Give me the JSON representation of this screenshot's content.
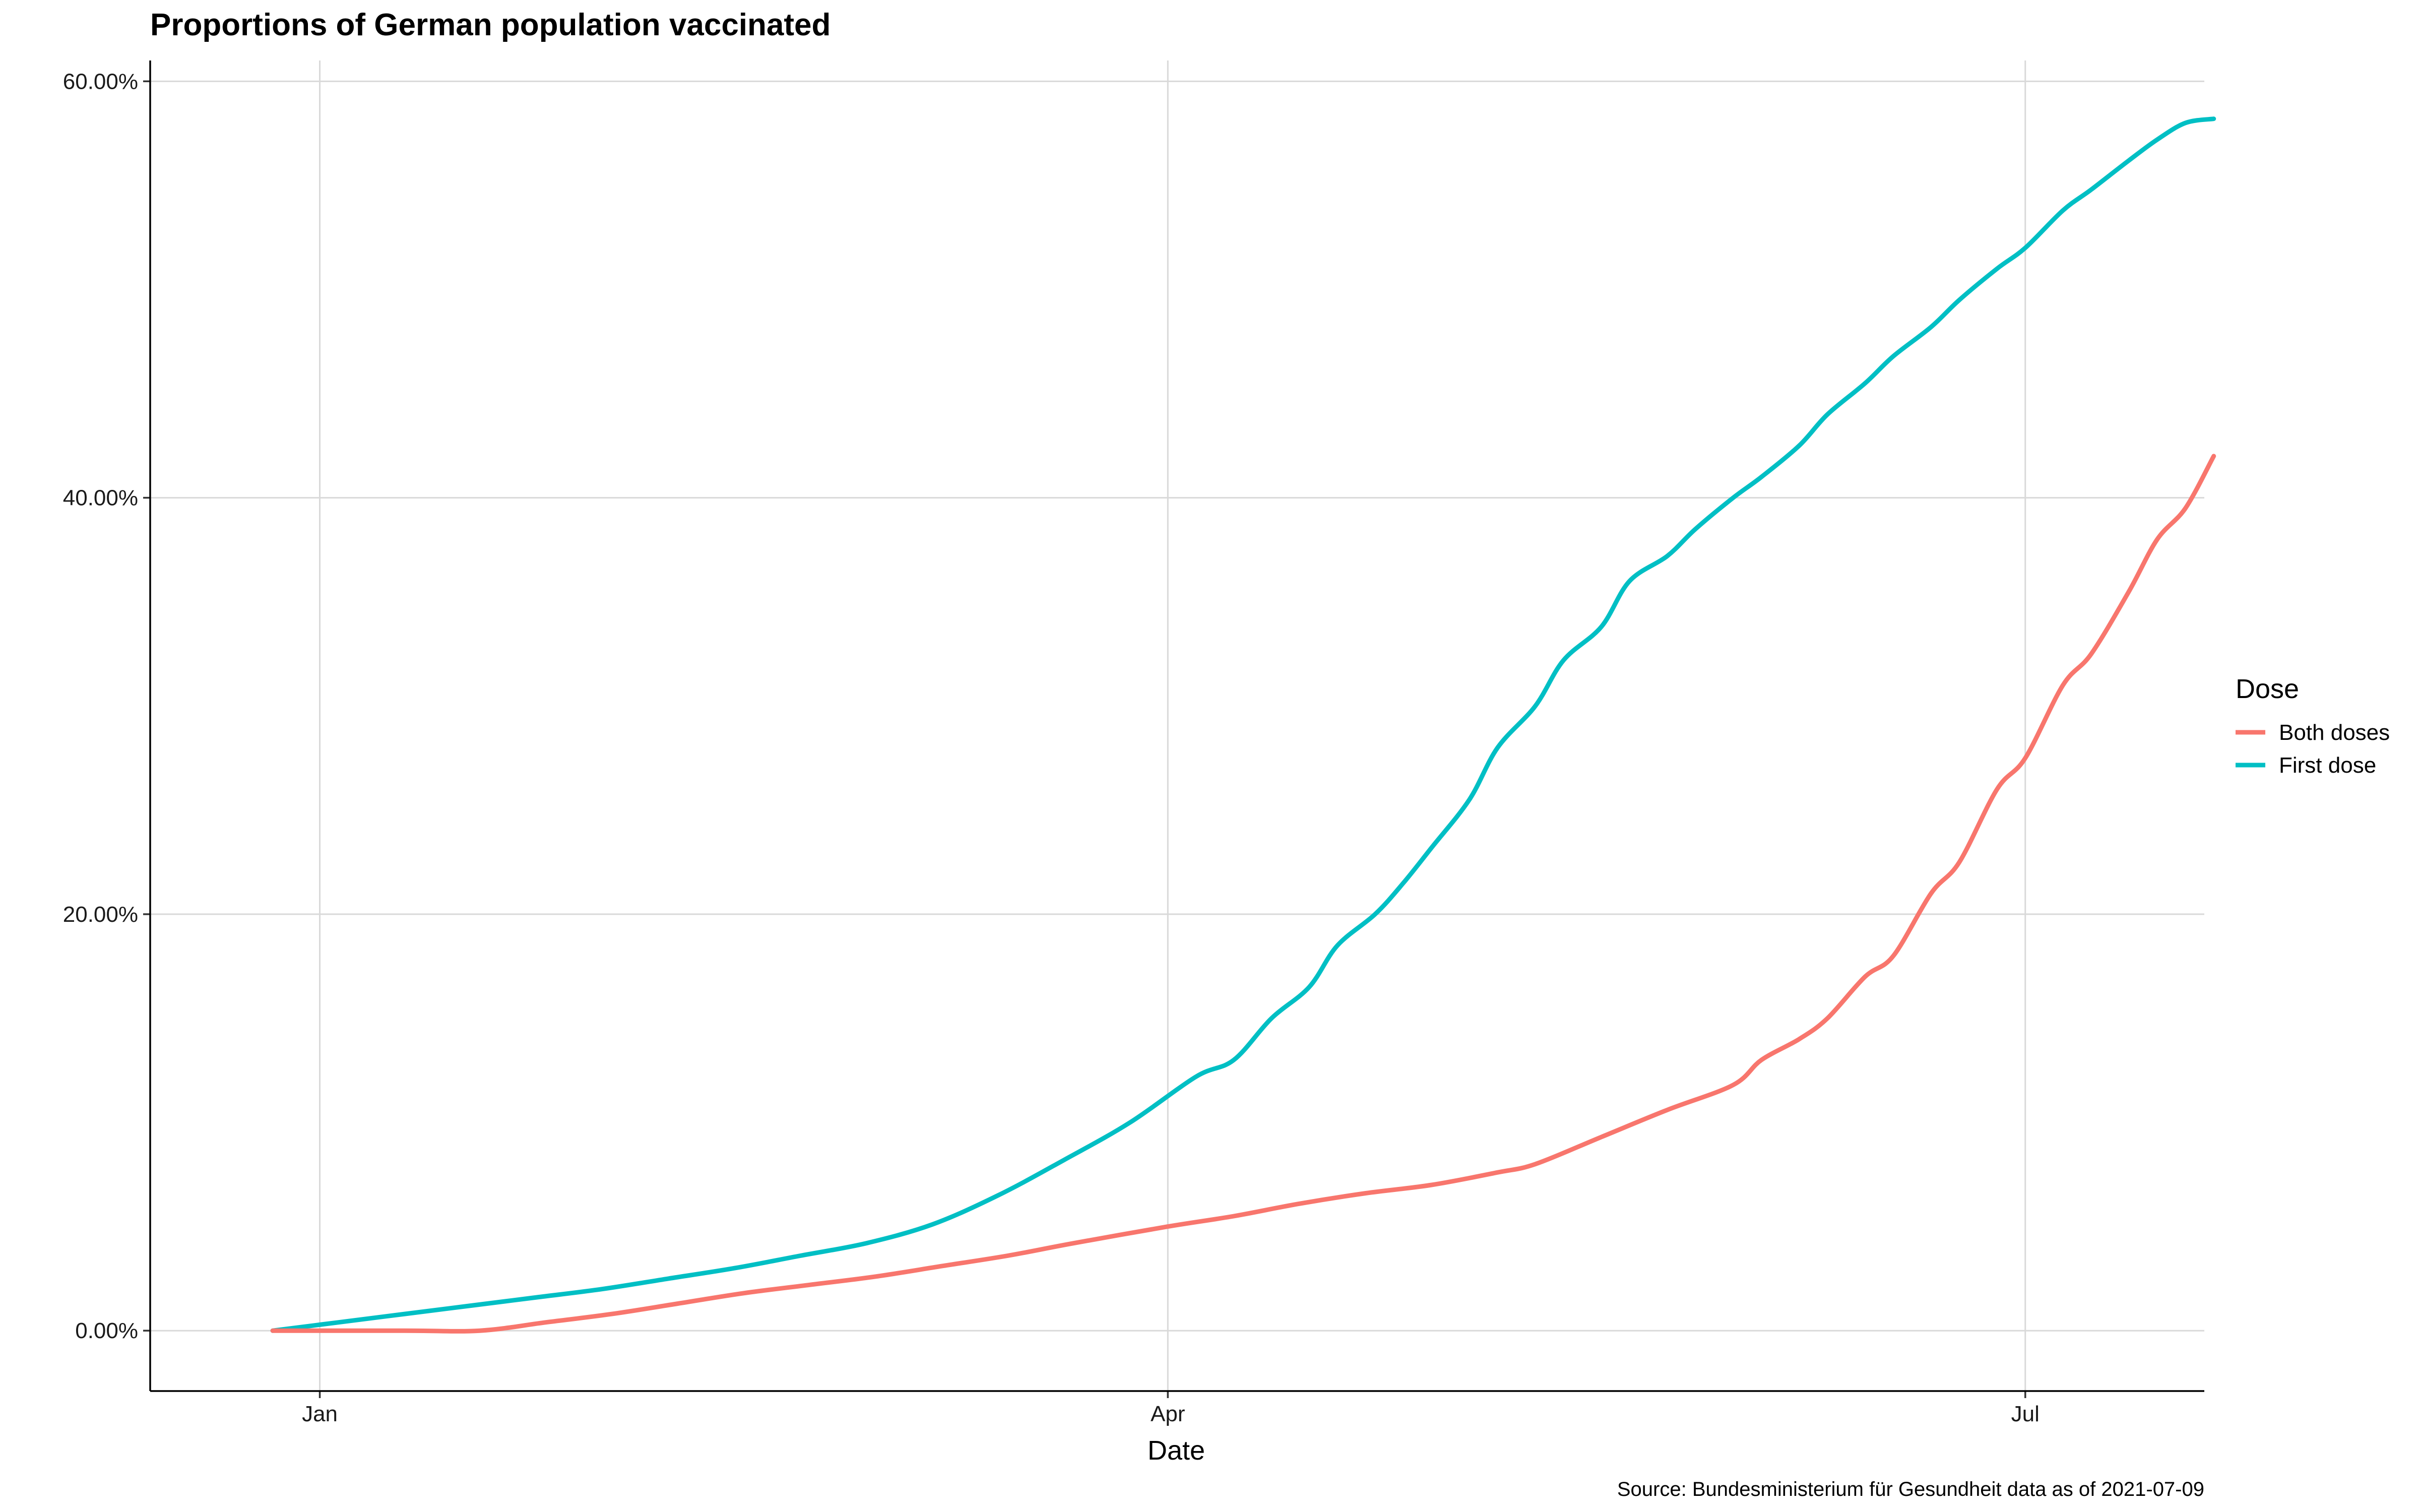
{
  "chart_data": {
    "type": "line",
    "title": "Proportions of German population vaccinated",
    "xlabel": "Date",
    "ylabel": "",
    "caption": "Source: Bundesministerium für Gesundheit data as of 2021-07-09",
    "x_axis": {
      "type": "date",
      "range": [
        "2020-12-14",
        "2021-07-20"
      ],
      "ticks": [
        {
          "date": "2021-01-01",
          "label": "Jan"
        },
        {
          "date": "2021-04-01",
          "label": "Apr"
        },
        {
          "date": "2021-07-01",
          "label": "Jul"
        }
      ]
    },
    "y_axis": {
      "range": [
        -0.029,
        0.61
      ],
      "ticks": [
        {
          "value": 0,
          "label": "0.00%"
        },
        {
          "value": 0.2,
          "label": "20.00%"
        },
        {
          "value": 0.4,
          "label": "40.00%"
        },
        {
          "value": 0.6,
          "label": "60.00%"
        }
      ]
    },
    "grid": true,
    "legend": {
      "title": "Dose",
      "position": "right"
    },
    "series": [
      {
        "name": "Both doses",
        "color": "#F8766D",
        "points": [
          [
            "2020-12-27",
            0.0
          ],
          [
            "2021-01-10",
            0.0
          ],
          [
            "2021-01-18",
            0.0
          ],
          [
            "2021-01-25",
            0.004
          ],
          [
            "2021-02-01",
            0.008
          ],
          [
            "2021-02-08",
            0.013
          ],
          [
            "2021-02-15",
            0.018
          ],
          [
            "2021-02-22",
            0.022
          ],
          [
            "2021-03-01",
            0.026
          ],
          [
            "2021-03-08",
            0.031
          ],
          [
            "2021-03-15",
            0.036
          ],
          [
            "2021-03-22",
            0.042
          ],
          [
            "2021-04-01",
            0.05
          ],
          [
            "2021-04-08",
            0.055
          ],
          [
            "2021-04-15",
            0.061
          ],
          [
            "2021-04-22",
            0.066
          ],
          [
            "2021-04-29",
            0.07
          ],
          [
            "2021-05-06",
            0.076
          ],
          [
            "2021-05-10",
            0.08
          ],
          [
            "2021-05-17",
            0.093
          ],
          [
            "2021-05-24",
            0.106
          ],
          [
            "2021-05-31",
            0.118
          ],
          [
            "2021-06-03",
            0.13
          ],
          [
            "2021-06-07",
            0.14
          ],
          [
            "2021-06-10",
            0.15
          ],
          [
            "2021-06-14",
            0.17
          ],
          [
            "2021-06-17",
            0.18
          ],
          [
            "2021-06-21",
            0.21
          ],
          [
            "2021-06-24",
            0.225
          ],
          [
            "2021-06-28",
            0.26
          ],
          [
            "2021-07-01",
            0.275
          ],
          [
            "2021-07-05",
            0.31
          ],
          [
            "2021-07-08",
            0.325
          ],
          [
            "2021-07-12",
            0.355
          ],
          [
            "2021-07-15",
            0.38
          ],
          [
            "2021-07-18",
            0.395
          ],
          [
            "2021-07-21",
            0.42
          ]
        ]
      },
      {
        "name": "First dose",
        "color": "#00BFC4",
        "points": [
          [
            "2020-12-27",
            0.0
          ],
          [
            "2021-01-03",
            0.004
          ],
          [
            "2021-01-10",
            0.008
          ],
          [
            "2021-01-17",
            0.012
          ],
          [
            "2021-01-24",
            0.016
          ],
          [
            "2021-01-31",
            0.02
          ],
          [
            "2021-02-07",
            0.025
          ],
          [
            "2021-02-14",
            0.03
          ],
          [
            "2021-02-21",
            0.036
          ],
          [
            "2021-02-28",
            0.042
          ],
          [
            "2021-03-07",
            0.051
          ],
          [
            "2021-03-14",
            0.065
          ],
          [
            "2021-03-21",
            0.082
          ],
          [
            "2021-03-28",
            0.1
          ],
          [
            "2021-04-04",
            0.122
          ],
          [
            "2021-04-08",
            0.13
          ],
          [
            "2021-04-12",
            0.15
          ],
          [
            "2021-04-16",
            0.165
          ],
          [
            "2021-04-19",
            0.185
          ],
          [
            "2021-04-23",
            0.2
          ],
          [
            "2021-04-26",
            0.215
          ],
          [
            "2021-04-29",
            0.232
          ],
          [
            "2021-05-03",
            0.255
          ],
          [
            "2021-05-06",
            0.28
          ],
          [
            "2021-05-10",
            0.3
          ],
          [
            "2021-05-13",
            0.322
          ],
          [
            "2021-05-17",
            0.338
          ],
          [
            "2021-05-20",
            0.36
          ],
          [
            "2021-05-24",
            0.372
          ],
          [
            "2021-05-27",
            0.385
          ],
          [
            "2021-05-31",
            0.4
          ],
          [
            "2021-06-03",
            0.41
          ],
          [
            "2021-06-07",
            0.425
          ],
          [
            "2021-06-10",
            0.44
          ],
          [
            "2021-06-14",
            0.455
          ],
          [
            "2021-06-17",
            0.468
          ],
          [
            "2021-06-21",
            0.482
          ],
          [
            "2021-06-24",
            0.495
          ],
          [
            "2021-06-28",
            0.51
          ],
          [
            "2021-07-01",
            0.52
          ],
          [
            "2021-07-05",
            0.538
          ],
          [
            "2021-07-08",
            0.548
          ],
          [
            "2021-07-12",
            0.562
          ],
          [
            "2021-07-15",
            0.572
          ],
          [
            "2021-07-18",
            0.58
          ],
          [
            "2021-07-21",
            0.582
          ]
        ]
      }
    ]
  }
}
